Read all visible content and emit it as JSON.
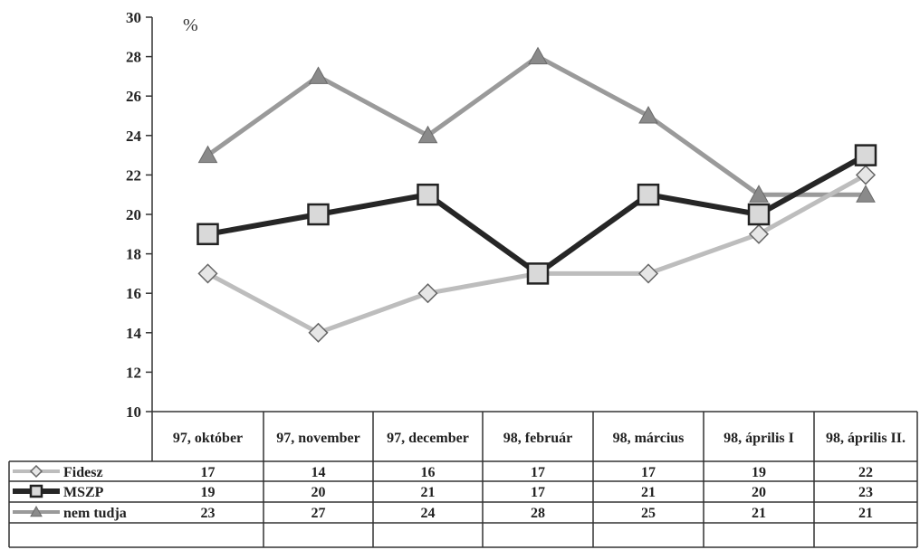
{
  "chart_data": {
    "type": "line",
    "ylabel": "%",
    "ylim": [
      10,
      30
    ],
    "yticks": [
      10,
      12,
      14,
      16,
      18,
      20,
      22,
      24,
      26,
      28,
      30
    ],
    "categories": [
      "97, október",
      "97, november",
      "97, december",
      "98, február",
      "98, március",
      "98, április I",
      "98, április II."
    ],
    "legend": "table-left",
    "grid": false,
    "series": [
      {
        "name": "Fidesz",
        "values": [
          17,
          14,
          16,
          17,
          17,
          19,
          22
        ],
        "color": "#bdbdbd",
        "marker": "diamond"
      },
      {
        "name": "MSZP",
        "values": [
          19,
          20,
          21,
          17,
          21,
          20,
          23
        ],
        "color": "#262626",
        "marker": "square"
      },
      {
        "name": "nem tudja",
        "values": [
          23,
          27,
          24,
          28,
          25,
          21,
          21
        ],
        "color": "#9a9a9a",
        "marker": "triangle"
      }
    ]
  }
}
